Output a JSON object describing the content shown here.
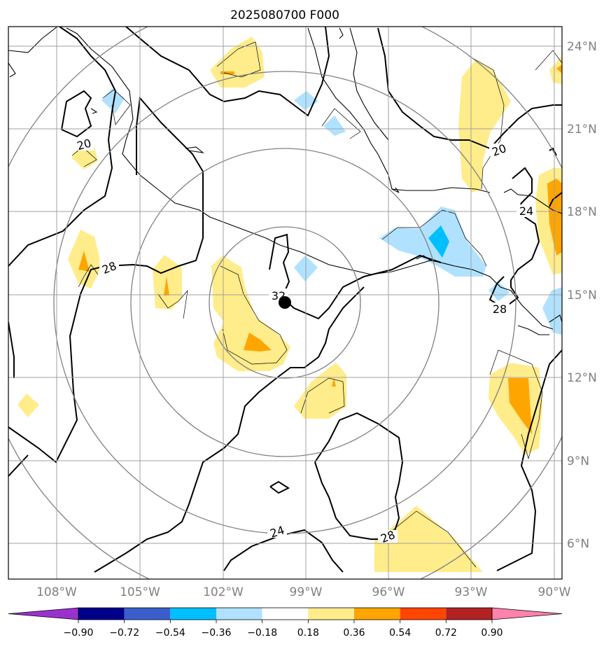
{
  "title": "2025080700 F000",
  "lat_ticks": [
    "24°N",
    "21°N",
    "18°N",
    "15°N",
    "12°N",
    "9°N",
    "6°N"
  ],
  "lon_ticks": [
    "108°W",
    "105°W",
    "102°W",
    "99°W",
    "96°W",
    "93°W",
    "90°W"
  ],
  "contour_labels": [
    "20",
    "20",
    "24",
    "28",
    "32",
    "28",
    "24",
    "28"
  ],
  "colorbar": {
    "colors": [
      "#9932cc",
      "#00008b",
      "#3a5fcd",
      "#00bfff",
      "#b0e2ff",
      "#ffffff",
      "#ffec8b",
      "#ffa500",
      "#ff4500",
      "#b22222",
      "#ff82ab"
    ],
    "tick_labels": [
      "−0.90",
      "−0.72",
      "−0.54",
      "−0.36",
      "−0.18",
      "0.18",
      "0.36",
      "0.54",
      "0.72",
      "0.90"
    ]
  },
  "marker": "storm-center-dot"
}
